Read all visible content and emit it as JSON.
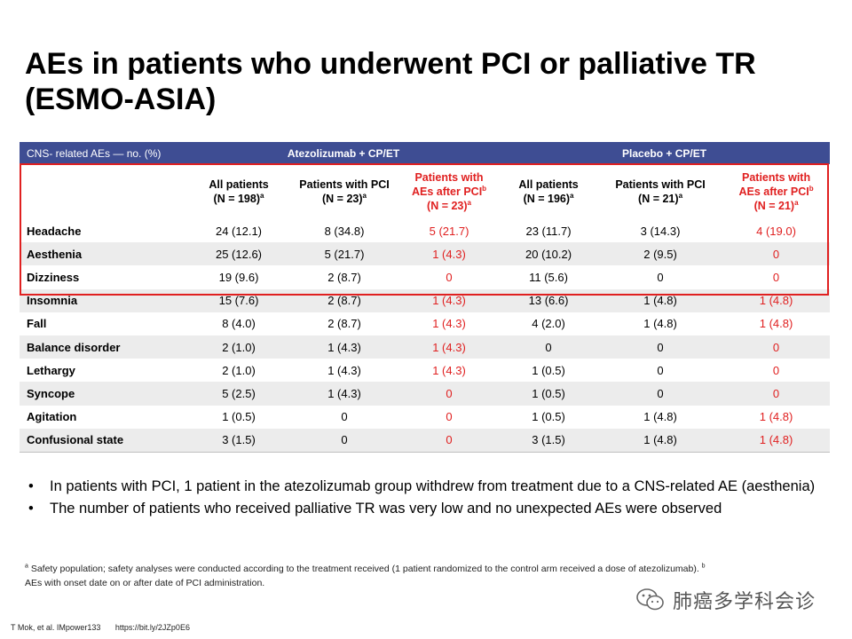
{
  "title": "AEs in patients who underwent PCI or palliative TR (ESMO-ASIA)",
  "table": {
    "header_label": "CNS- related AEs — no. (%)",
    "group1": "Atezolizumab + CP/ET",
    "group2": "Placebo + CP/ET",
    "columns": [
      {
        "l1": "All patients",
        "l2": "(N = 198)",
        "sup": "a",
        "sup2": "",
        "red": false
      },
      {
        "l1": "Patients with PCI",
        "l2": "(N = 23)",
        "sup": "a",
        "sup2": "",
        "red": false
      },
      {
        "l1": "Patients with",
        "l1b": "AEs after PCI",
        "sup2": "b",
        "l2": "(N = 23)",
        "sup": "a",
        "red": true
      },
      {
        "l1": "All patients",
        "l2": "(N = 196)",
        "sup": "a",
        "sup2": "",
        "red": false
      },
      {
        "l1": "Patients with PCI",
        "l2": "(N = 21)",
        "sup": "a",
        "sup2": "",
        "red": false
      },
      {
        "l1": "Patients with",
        "l1b": "AEs after PCI",
        "sup2": "b",
        "l2": "(N = 21)",
        "sup": "a",
        "red": true
      }
    ],
    "rows": [
      {
        "label": "Headache",
        "cells": [
          "24 (12.1)",
          "8 (34.8)",
          "5 (21.7)",
          "23 (11.7)",
          "3 (14.3)",
          "4 (19.0)"
        ]
      },
      {
        "label": "Aesthenia",
        "cells": [
          "25 (12.6)",
          "5 (21.7)",
          "1 (4.3)",
          "20 (10.2)",
          "2 (9.5)",
          "0"
        ]
      },
      {
        "label": "Dizziness",
        "cells": [
          "19 (9.6)",
          "2 (8.7)",
          "0",
          "11 (5.6)",
          "0",
          "0"
        ]
      },
      {
        "label": "Insomnia",
        "cells": [
          "15 (7.6)",
          "2 (8.7)",
          "1 (4.3)",
          "13 (6.6)",
          "1 (4.8)",
          "1 (4.8)"
        ]
      },
      {
        "label": "Fall",
        "cells": [
          "8 (4.0)",
          "2 (8.7)",
          "1 (4.3)",
          "4 (2.0)",
          "1 (4.8)",
          "1 (4.8)"
        ]
      },
      {
        "label": "Balance disorder",
        "cells": [
          "2 (1.0)",
          "1 (4.3)",
          "1 (4.3)",
          "0",
          "0",
          "0"
        ]
      },
      {
        "label": "Lethargy",
        "cells": [
          "2 (1.0)",
          "1 (4.3)",
          "1 (4.3)",
          "1 (0.5)",
          "0",
          "0"
        ]
      },
      {
        "label": "Syncope",
        "cells": [
          "5 (2.5)",
          "1 (4.3)",
          "0",
          "1 (0.5)",
          "0",
          "0"
        ]
      },
      {
        "label": "Agitation",
        "cells": [
          "1 (0.5)",
          "0",
          "0",
          "1 (0.5)",
          "1 (4.8)",
          "1 (4.8)"
        ]
      },
      {
        "label": "Confusional state",
        "cells": [
          "3 (1.5)",
          "0",
          "0",
          "3 (1.5)",
          "1 (4.8)",
          "1 (4.8)"
        ]
      }
    ]
  },
  "bullets": [
    "In patients with PCI, 1 patient in the atezolizumab group withdrew from treatment due to a CNS-related AE (aesthenia)",
    "The number of patients who received palliative TR was very low and no unexpected AEs were observed"
  ],
  "footnote": {
    "sup_a": "a",
    "text_a": " Safety population; safety analyses were conducted according to the treatment received (1 patient randomized to the control arm received a dose of atezolizumab). ",
    "sup_b": "b",
    "text_b": " AEs with onset date on or after date of PCI administration."
  },
  "citation": {
    "ref": "T Mok, et al. IMpower133",
    "url": "https://bit.ly/2JZp0E6"
  },
  "watermark": {
    "text": "肺癌多学科会诊",
    "icon": "wechat-icon"
  },
  "colors": {
    "header_bg": "#3e4d93",
    "accent_red": "#e02020",
    "stripe": "#ececec"
  }
}
